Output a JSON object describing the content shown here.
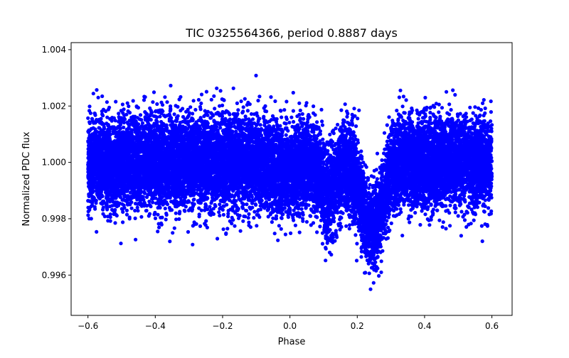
{
  "chart_data": {
    "type": "scatter",
    "title": "TIC 0325564366, period 0.8887 days",
    "xlabel": "Phase",
    "ylabel": "Normalized PDC flux",
    "xlim": [
      -0.65,
      0.66
    ],
    "ylim": [
      0.99457,
      1.00425
    ],
    "x_ticks": [
      -0.6,
      -0.4,
      -0.2,
      0.0,
      0.2,
      0.4,
      0.6
    ],
    "x_tick_labels": [
      "−0.6",
      "−0.4",
      "−0.2",
      "0.0",
      "0.2",
      "0.4",
      "0.6"
    ],
    "y_ticks": [
      0.996,
      0.998,
      1.0,
      1.002,
      1.004
    ],
    "y_tick_labels": [
      "0.996",
      "0.998",
      "1.000",
      "1.002",
      "1.004"
    ],
    "grid": false,
    "marker_color": "#0000ff",
    "phase_range": [
      -0.6,
      0.6
    ],
    "baseline_flux": 1.0,
    "scatter_sigma": 0.0008,
    "primary_eclipse": {
      "center": 0.245,
      "depth": 0.0024,
      "width": 0.03
    },
    "secondary_eclipse": {
      "center": 0.115,
      "depth": 0.0012,
      "width": 0.022
    },
    "pre_eclipse_dip": {
      "center": -0.02,
      "depth": 0.0004,
      "width": 0.03
    },
    "n_points": 16000
  }
}
